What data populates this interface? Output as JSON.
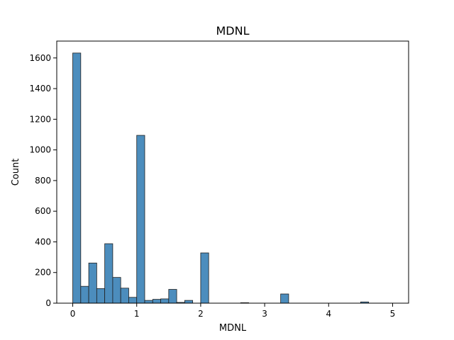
{
  "chart_data": {
    "type": "bar",
    "title": "MDNL",
    "xlabel": "MDNL",
    "ylabel": "Count",
    "xlim": [
      -0.25,
      5.25
    ],
    "ylim": [
      0,
      1710
    ],
    "xticks": [
      0,
      1,
      2,
      3,
      4,
      5
    ],
    "xtick_labels": [
      "0",
      "1",
      "2",
      "3",
      "4",
      "5"
    ],
    "yticks": [
      0,
      200,
      400,
      600,
      800,
      1000,
      1200,
      1400,
      1600
    ],
    "ytick_labels": [
      "0",
      "200",
      "400",
      "600",
      "800",
      "1000",
      "1200",
      "1400",
      "1600"
    ],
    "bin_width": 0.125,
    "bin_starts": [
      0,
      0.125,
      0.25,
      0.375,
      0.5,
      0.625,
      0.75,
      0.875,
      1.0,
      1.125,
      1.25,
      1.375,
      1.5,
      1.625,
      1.75,
      1.875,
      2.0,
      2.125,
      2.25,
      2.375,
      2.5,
      2.625,
      2.75,
      2.875,
      3.0,
      3.125,
      3.25,
      3.375,
      3.5,
      3.625,
      3.75,
      3.875,
      4.0,
      4.125,
      4.25,
      4.375,
      4.5,
      4.625,
      4.75,
      4.875
    ],
    "values": [
      1632,
      110,
      262,
      95,
      388,
      168,
      98,
      38,
      1095,
      18,
      25,
      28,
      90,
      5,
      18,
      0,
      328,
      0,
      0,
      0,
      0,
      3,
      0,
      0,
      0,
      0,
      60,
      0,
      0,
      0,
      0,
      0,
      0,
      0,
      0,
      0,
      8,
      0,
      0,
      0
    ],
    "grid": false,
    "bar_color": "#4c8dbd",
    "edge_color": "#1f1f1f"
  }
}
